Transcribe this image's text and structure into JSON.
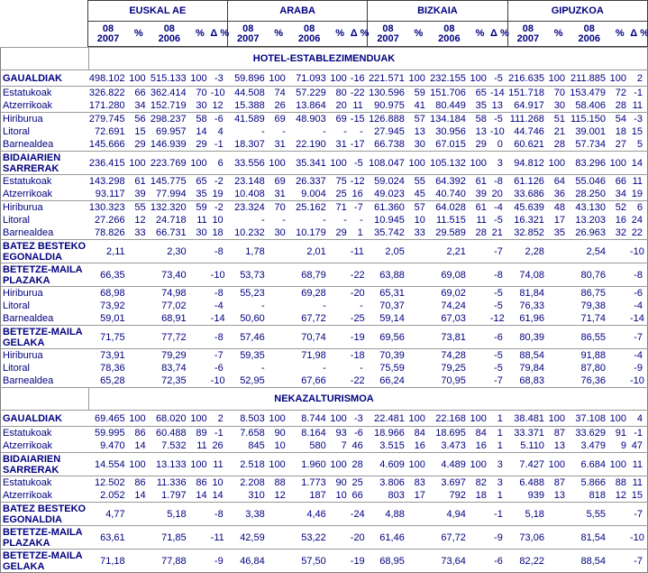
{
  "table": {
    "regions": [
      "EUSKAL AE",
      "ARABA",
      "BIZKAIA",
      "GIPUZKOA"
    ],
    "subheaders": [
      "08 2007",
      "%",
      "08 2006",
      "%",
      "Δ %"
    ],
    "text_color": "#000080",
    "sections": [
      {
        "title": "HOTEL-ESTABLEZIMENDUAK",
        "rows": [
          {
            "label": "GAUALDIAK",
            "bold": true,
            "tall": false,
            "sep": true,
            "cells": [
              "498.102",
              "100",
              "515.133",
              "100",
              "-3",
              "59.896",
              "100",
              "71.093",
              "100",
              "-16",
              "221.571",
              "100",
              "232.155",
              "100",
              "-5",
              "216.635",
              "100",
              "211.885",
              "100",
              "2"
            ]
          },
          {
            "label": "Estatukoak",
            "bold": false,
            "sep": false,
            "cells": [
              "326.822",
              "66",
              "362.414",
              "70",
              "-10",
              "44.508",
              "74",
              "57.229",
              "80",
              "-22",
              "130.596",
              "59",
              "151.706",
              "65",
              "-14",
              "151.718",
              "70",
              "153.479",
              "72",
              "-1"
            ]
          },
          {
            "label": "Atzerrikoak",
            "bold": false,
            "sep": true,
            "cells": [
              "171.280",
              "34",
              "152.719",
              "30",
              "12",
              "15.388",
              "26",
              "13.864",
              "20",
              "11",
              "90.975",
              "41",
              "80.449",
              "35",
              "13",
              "64.917",
              "30",
              "58.406",
              "28",
              "11"
            ]
          },
          {
            "label": "Hiriburua",
            "bold": false,
            "sep": false,
            "cells": [
              "279.745",
              "56",
              "298.237",
              "58",
              "-6",
              "41.589",
              "69",
              "48.903",
              "69",
              "-15",
              "126.888",
              "57",
              "134.184",
              "58",
              "-5",
              "111.268",
              "51",
              "115.150",
              "54",
              "-3"
            ]
          },
          {
            "label": "Litoral",
            "bold": false,
            "sep": false,
            "cells": [
              "72.691",
              "15",
              "69.957",
              "14",
              "4",
              "-",
              "-",
              "-",
              "-",
              "-",
              "27.945",
              "13",
              "30.956",
              "13",
              "-10",
              "44.746",
              "21",
              "39.001",
              "18",
              "15"
            ]
          },
          {
            "label": "Barnealdea",
            "bold": false,
            "sep": true,
            "cells": [
              "145.666",
              "29",
              "146.939",
              "29",
              "-1",
              "18.307",
              "31",
              "22.190",
              "31",
              "-17",
              "66.738",
              "30",
              "67.015",
              "29",
              "0",
              "60.621",
              "28",
              "57.734",
              "27",
              "5"
            ]
          },
          {
            "label": "BIDAIARIEN SARRERAK",
            "bold": true,
            "tall": true,
            "sep": true,
            "cells": [
              "236.415",
              "100",
              "223.769",
              "100",
              "6",
              "33.556",
              "100",
              "35.341",
              "100",
              "-5",
              "108.047",
              "100",
              "105.132",
              "100",
              "3",
              "94.812",
              "100",
              "83.296",
              "100",
              "14"
            ]
          },
          {
            "label": "Estatukoak",
            "bold": false,
            "sep": false,
            "cells": [
              "143.298",
              "61",
              "145.775",
              "65",
              "-2",
              "23.148",
              "69",
              "26.337",
              "75",
              "-12",
              "59.024",
              "55",
              "64.392",
              "61",
              "-8",
              "61.126",
              "64",
              "55.046",
              "66",
              "11"
            ]
          },
          {
            "label": "Atzerrikoak",
            "bold": false,
            "sep": true,
            "cells": [
              "93.117",
              "39",
              "77.994",
              "35",
              "19",
              "10.408",
              "31",
              "9.004",
              "25",
              "16",
              "49.023",
              "45",
              "40.740",
              "39",
              "20",
              "33.686",
              "36",
              "28.250",
              "34",
              "19"
            ]
          },
          {
            "label": "Hiriburua",
            "bold": false,
            "sep": false,
            "cells": [
              "130.323",
              "55",
              "132.320",
              "59",
              "-2",
              "23.324",
              "70",
              "25.162",
              "71",
              "-7",
              "61.360",
              "57",
              "64.028",
              "61",
              "-4",
              "45.639",
              "48",
              "43.130",
              "52",
              "6"
            ]
          },
          {
            "label": "Litoral",
            "bold": false,
            "sep": false,
            "cells": [
              "27.266",
              "12",
              "24.718",
              "11",
              "10",
              "-",
              "-",
              "-",
              "-",
              "-",
              "10.945",
              "10",
              "11.515",
              "11",
              "-5",
              "16.321",
              "17",
              "13.203",
              "16",
              "24"
            ]
          },
          {
            "label": "Barnealdea",
            "bold": false,
            "sep": true,
            "cells": [
              "78.826",
              "33",
              "66.731",
              "30",
              "18",
              "10.232",
              "30",
              "10.179",
              "29",
              "1",
              "35.742",
              "33",
              "29.589",
              "28",
              "21",
              "32.852",
              "35",
              "26.963",
              "32",
              "22"
            ]
          },
          {
            "label": "BATEZ BESTEKO EGONALDIA",
            "bold": true,
            "tall": true,
            "sep": true,
            "cells": [
              "2,11",
              "",
              "2,30",
              "",
              "-8",
              "1,78",
              "",
              "2,01",
              "",
              "-11",
              "2,05",
              "",
              "2,21",
              "",
              "-7",
              "2,28",
              "",
              "2,54",
              "",
              "-10"
            ]
          },
          {
            "label": "BETETZE-MAILA PLAZAKA",
            "bold": true,
            "tall": true,
            "sep": true,
            "cells": [
              "66,35",
              "",
              "73,40",
              "",
              "-10",
              "53,73",
              "",
              "68,79",
              "",
              "-22",
              "63,88",
              "",
              "69,08",
              "",
              "-8",
              "74,08",
              "",
              "80,76",
              "",
              "-8"
            ]
          },
          {
            "label": "Hiriburua",
            "bold": false,
            "sep": false,
            "cells": [
              "68,98",
              "",
              "74,98",
              "",
              "-8",
              "55,23",
              "",
              "69,28",
              "",
              "-20",
              "65,31",
              "",
              "69,02",
              "",
              "-5",
              "81,84",
              "",
              "86,75",
              "",
              "-6"
            ]
          },
          {
            "label": "Litoral",
            "bold": false,
            "sep": false,
            "cells": [
              "73,92",
              "",
              "77,02",
              "",
              "-4",
              "-",
              "",
              "-",
              "",
              "-",
              "70,37",
              "",
              "74,24",
              "",
              "-5",
              "76,33",
              "",
              "79,38",
              "",
              "-4"
            ]
          },
          {
            "label": "Barnealdea",
            "bold": false,
            "sep": true,
            "cells": [
              "59,01",
              "",
              "68,91",
              "",
              "-14",
              "50,60",
              "",
              "67,72",
              "",
              "-25",
              "59,14",
              "",
              "67,03",
              "",
              "-12",
              "61,96",
              "",
              "71,74",
              "",
              "-14"
            ]
          },
          {
            "label": "BETETZE-MAILA GELAKA",
            "bold": true,
            "tall": true,
            "sep": true,
            "cells": [
              "71,75",
              "",
              "77,72",
              "",
              "-8",
              "57,46",
              "",
              "70,74",
              "",
              "-19",
              "69,56",
              "",
              "73,81",
              "",
              "-6",
              "80,39",
              "",
              "86,55",
              "",
              "-7"
            ]
          },
          {
            "label": "Hiriburua",
            "bold": false,
            "sep": false,
            "cells": [
              "73,91",
              "",
              "79,29",
              "",
              "-7",
              "59,35",
              "",
              "71,98",
              "",
              "-18",
              "70,39",
              "",
              "74,28",
              "",
              "-5",
              "88,54",
              "",
              "91,88",
              "",
              "-4"
            ]
          },
          {
            "label": "Litoral",
            "bold": false,
            "sep": false,
            "cells": [
              "78,36",
              "",
              "83,74",
              "",
              "-6",
              "-",
              "",
              "-",
              "",
              "-",
              "75,59",
              "",
              "79,25",
              "",
              "-5",
              "79,84",
              "",
              "87,80",
              "",
              "-9"
            ]
          },
          {
            "label": "Barnealdea",
            "bold": false,
            "sep": false,
            "cells": [
              "65,28",
              "",
              "72,35",
              "",
              "-10",
              "52,95",
              "",
              "67,66",
              "",
              "-22",
              "66,24",
              "",
              "70,95",
              "",
              "-7",
              "68,83",
              "",
              "76,36",
              "",
              "-10"
            ]
          }
        ]
      },
      {
        "title": "NEKAZALTURISMOA",
        "rows": [
          {
            "label": "GAUALDIAK",
            "bold": true,
            "tall": false,
            "sep": true,
            "cells": [
              "69.465",
              "100",
              "68.020",
              "100",
              "2",
              "8.503",
              "100",
              "8.744",
              "100",
              "-3",
              "22.481",
              "100",
              "22.168",
              "100",
              "1",
              "38.481",
              "100",
              "37.108",
              "100",
              "4"
            ]
          },
          {
            "label": "Estatukoak",
            "bold": false,
            "sep": false,
            "cells": [
              "59.995",
              "86",
              "60.488",
              "89",
              "-1",
              "7.658",
              "90",
              "8.164",
              "93",
              "-6",
              "18.966",
              "84",
              "18.695",
              "84",
              "1",
              "33.371",
              "87",
              "33.629",
              "91",
              "-1"
            ]
          },
          {
            "label": "Atzerrikoak",
            "bold": false,
            "sep": true,
            "cells": [
              "9.470",
              "14",
              "7.532",
              "11",
              "26",
              "845",
              "10",
              "580",
              "7",
              "46",
              "3.515",
              "16",
              "3.473",
              "16",
              "1",
              "5.110",
              "13",
              "3.479",
              "9",
              "47"
            ]
          },
          {
            "label": "BIDAIARIEN SARRERAK",
            "bold": true,
            "tall": true,
            "sep": true,
            "cells": [
              "14.554",
              "100",
              "13.133",
              "100",
              "11",
              "2.518",
              "100",
              "1.960",
              "100",
              "28",
              "4.609",
              "100",
              "4.489",
              "100",
              "3",
              "7.427",
              "100",
              "6.684",
              "100",
              "11"
            ]
          },
          {
            "label": "Estatukoak",
            "bold": false,
            "sep": false,
            "cells": [
              "12.502",
              "86",
              "11.336",
              "86",
              "10",
              "2.208",
              "88",
              "1.773",
              "90",
              "25",
              "3.806",
              "83",
              "3.697",
              "82",
              "3",
              "6.488",
              "87",
              "5.866",
              "88",
              "11"
            ]
          },
          {
            "label": "Atzerrikoak",
            "bold": false,
            "sep": true,
            "cells": [
              "2.052",
              "14",
              "1.797",
              "14",
              "14",
              "310",
              "12",
              "187",
              "10",
              "66",
              "803",
              "17",
              "792",
              "18",
              "1",
              "939",
              "13",
              "818",
              "12",
              "15"
            ]
          },
          {
            "label": "BATEZ BESTEKO EGONALDIA",
            "bold": true,
            "tall": true,
            "sep": true,
            "cells": [
              "4,77",
              "",
              "5,18",
              "",
              "-8",
              "3,38",
              "",
              "4,46",
              "",
              "-24",
              "4,88",
              "",
              "4,94",
              "",
              "-1",
              "5,18",
              "",
              "5,55",
              "",
              "-7"
            ]
          },
          {
            "label": "BETETZE-MAILA PLAZAKA",
            "bold": true,
            "tall": true,
            "sep": true,
            "cells": [
              "63,61",
              "",
              "71,85",
              "",
              "-11",
              "42,59",
              "",
              "53,22",
              "",
              "-20",
              "61,46",
              "",
              "67,72",
              "",
              "-9",
              "73,06",
              "",
              "81,54",
              "",
              "-10"
            ]
          },
          {
            "label": "BETETZE-MAILA GELAKA",
            "bold": true,
            "tall": true,
            "sep": false,
            "cells": [
              "71,18",
              "",
              "77,88",
              "",
              "-9",
              "46,84",
              "",
              "57,50",
              "",
              "-19",
              "68,95",
              "",
              "73,64",
              "",
              "-6",
              "82,22",
              "",
              "88,54",
              "",
              "-7"
            ]
          }
        ]
      }
    ]
  }
}
